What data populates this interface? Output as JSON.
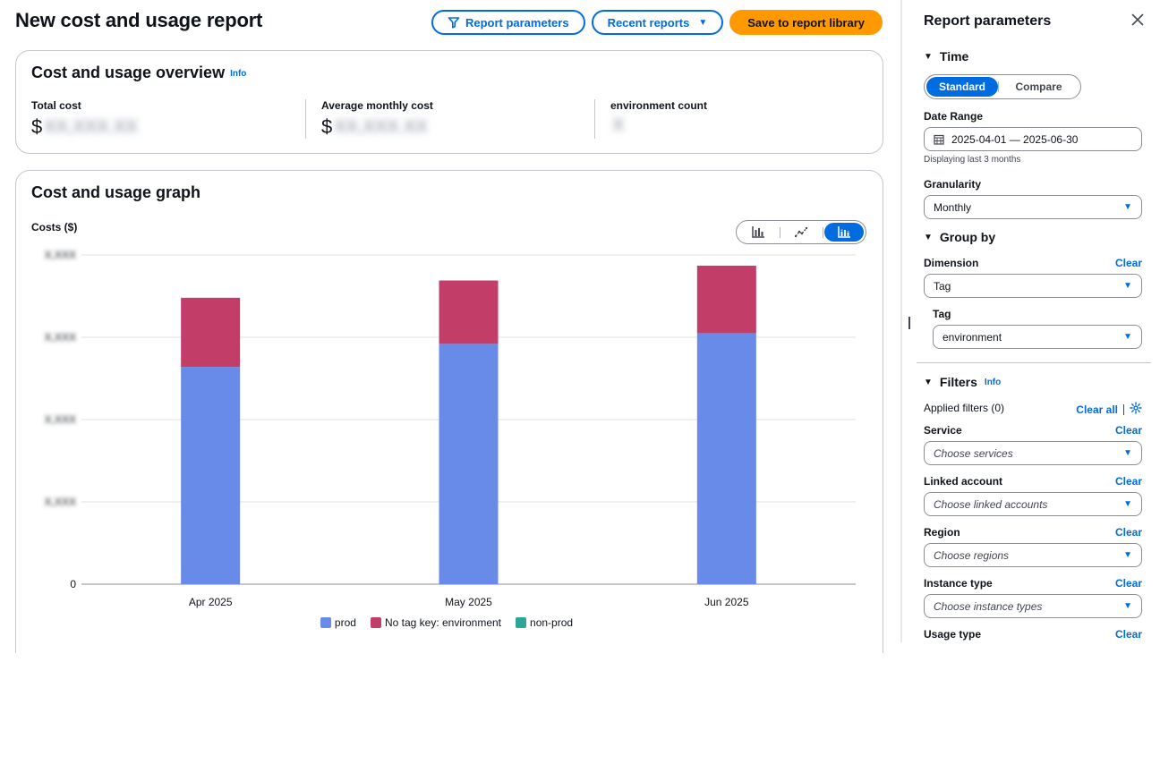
{
  "page": {
    "title": "New cost and usage report"
  },
  "header": {
    "report_parameters_label": "Report parameters",
    "recent_reports_label": "Recent reports",
    "save_label": "Save to report library"
  },
  "overview": {
    "title": "Cost and usage overview",
    "info": "Info",
    "metrics": [
      {
        "label": "Total cost",
        "currency": "$",
        "value": "XX,XXX.XX"
      },
      {
        "label": "Average monthly cost",
        "currency": "$",
        "value": "XX,XXX.XX"
      },
      {
        "label": "environment count",
        "currency": "",
        "value": "X"
      }
    ]
  },
  "graph": {
    "title": "Cost and usage graph",
    "view_modes": [
      {
        "icon": "bar-chart-icon",
        "active": false
      },
      {
        "icon": "line-chart-icon",
        "active": false
      },
      {
        "icon": "stacked-bar-chart-icon",
        "active": true
      }
    ]
  },
  "chart_data": {
    "type": "bar",
    "stacked": true,
    "ylabel": "Costs ($)",
    "xlabel": "",
    "categories": [
      "Apr 2025",
      "May 2025",
      "Jun 2025"
    ],
    "y_tick_labels": [
      "0",
      "X,XXX",
      "X,XXX",
      "X,XXX",
      "X,XXX"
    ],
    "ylim": [
      0,
      4
    ],
    "y_note": "tick values are blurred in the source; values are expressed in gridline units",
    "series": [
      {
        "name": "prod",
        "color": "#688ae8",
        "values": [
          2.64,
          2.92,
          3.05
        ]
      },
      {
        "name": "No tag key: environment",
        "color": "#c33d69",
        "values": [
          0.84,
          0.77,
          0.82
        ]
      },
      {
        "name": "non-prod",
        "color": "#2ea597",
        "values": [
          0,
          0,
          0
        ]
      }
    ],
    "grid": true,
    "legend_position": "bottom"
  },
  "panel": {
    "title": "Report parameters",
    "time": {
      "heading": "Time",
      "modes": [
        "Standard",
        "Compare"
      ],
      "date_range_label": "Date Range",
      "date_range_value": "2025-04-01 — 2025-06-30",
      "date_hint": "Displaying last 3 months",
      "granularity_label": "Granularity",
      "granularity_value": "Monthly"
    },
    "group_by": {
      "heading": "Group by",
      "dimension_label": "Dimension",
      "dimension_value": "Tag",
      "clear": "Clear",
      "tag_label": "Tag",
      "tag_value": "environment"
    },
    "filters": {
      "heading": "Filters",
      "info": "Info",
      "applied": "Applied filters (0)",
      "clear_all": "Clear all",
      "items": [
        {
          "label": "Service",
          "placeholder": "Choose services",
          "clear": "Clear"
        },
        {
          "label": "Linked account",
          "placeholder": "Choose linked accounts",
          "clear": "Clear"
        },
        {
          "label": "Region",
          "placeholder": "Choose regions",
          "clear": "Clear"
        },
        {
          "label": "Instance type",
          "placeholder": "Choose instance types",
          "clear": "Clear"
        },
        {
          "label": "Usage type",
          "placeholder": "",
          "clear": "Clear"
        }
      ]
    }
  }
}
